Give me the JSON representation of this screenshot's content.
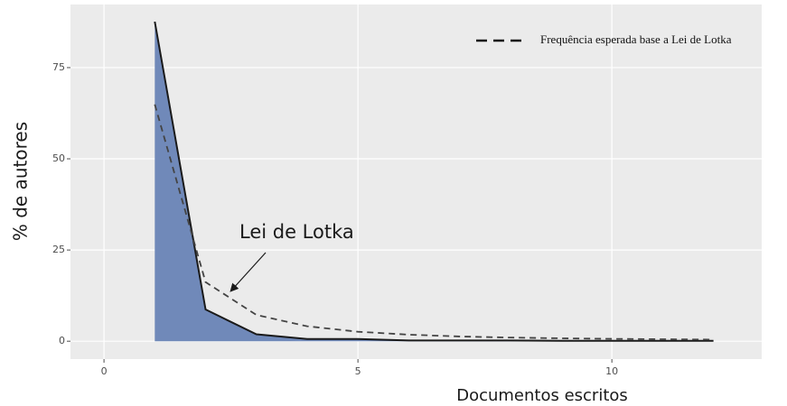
{
  "chart_data": {
    "type": "area",
    "x_label": "Documentos escritos",
    "y_label": "% de autores",
    "x": [
      1,
      2,
      3,
      4,
      5,
      6,
      7,
      8,
      9,
      10,
      11,
      12
    ],
    "series": [
      {
        "color": "#1a1a1a",
        "fill": "#7089b9",
        "values": [
          87.6,
          8.7,
          1.9,
          0.6,
          0.6,
          0.2,
          0.2,
          0.2,
          0.1,
          0.1,
          0.1,
          0.1
        ]
      },
      {
        "name": "Frequência esperada base a Lei de Lotka",
        "color": "#444444",
        "dashed": true,
        "values": [
          64.9,
          16.2,
          7.2,
          4.1,
          2.6,
          1.8,
          1.3,
          1.0,
          0.8,
          0.65,
          0.54,
          0.45
        ]
      }
    ],
    "annotation": "Lei de Lotka",
    "xlim": [
      -0.66,
      12.95
    ],
    "ylim": [
      -4.9,
      92.3
    ],
    "xticks": [
      0,
      5,
      10
    ],
    "yticks": [
      0,
      25,
      50,
      75
    ],
    "grid": true,
    "legend": "top-right"
  }
}
